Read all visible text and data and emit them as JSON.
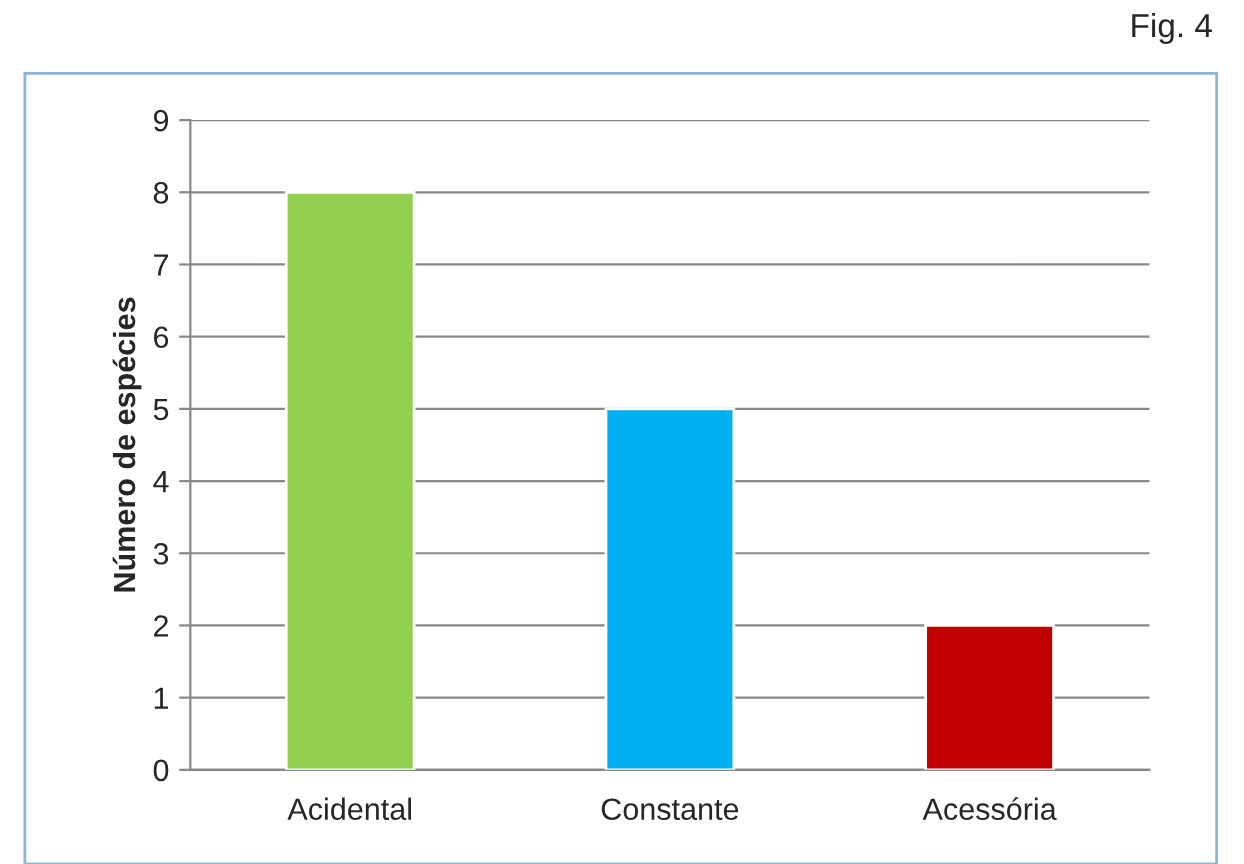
{
  "chart_data": {
    "type": "bar",
    "ylabel": "Número de espécies",
    "categories": [
      "Acidental",
      "Constante",
      "Acessória"
    ],
    "values": [
      8,
      5,
      2
    ],
    "colors": [
      "#92d050",
      "#00b0f0",
      "#c00000"
    ],
    "ylim": [
      0,
      9
    ],
    "yticks": [
      0,
      1,
      2,
      3,
      4,
      5,
      6,
      7,
      8,
      9
    ],
    "grid": "y",
    "annotations": [
      "Fig. 4"
    ]
  }
}
